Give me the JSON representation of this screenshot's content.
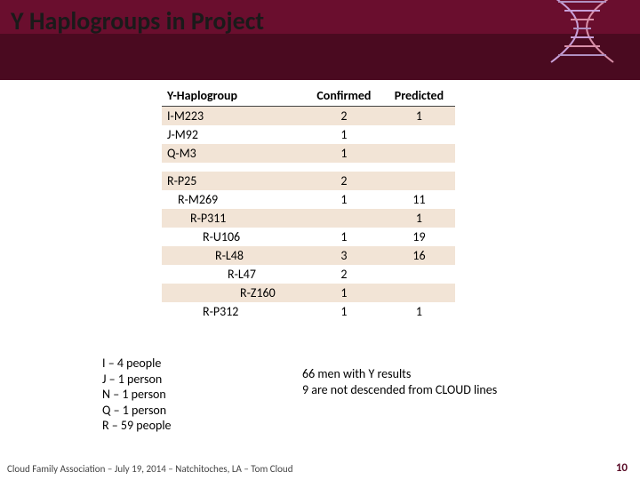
{
  "title": "Y Haplogroups in Project",
  "colors": {
    "header_band": "#6a0e2e",
    "header_inner": "#4a0a20",
    "row_band": "#f2e4d6",
    "page_num": "#5a0d28"
  },
  "table": {
    "headers": {
      "c0": "Y-Haplogroup",
      "c1": "Confirmed",
      "c2": "Predicted"
    },
    "rows": [
      {
        "label": "I-M223",
        "indent": 0,
        "confirmed": "2",
        "predicted": "1",
        "band": true
      },
      {
        "label": "J-M92",
        "indent": 0,
        "confirmed": "1",
        "predicted": "",
        "band": false
      },
      {
        "label": "Q-M3",
        "indent": 0,
        "confirmed": "1",
        "predicted": "",
        "band": true
      },
      {
        "gap": true
      },
      {
        "label": "R-P25",
        "indent": 0,
        "confirmed": "2",
        "predicted": "",
        "band": true
      },
      {
        "label": "R-M269",
        "indent": 1,
        "confirmed": "1",
        "predicted": "11",
        "band": false
      },
      {
        "label": "R-P311",
        "indent": 2,
        "confirmed": "",
        "predicted": "1",
        "band": true
      },
      {
        "label": "R-U106",
        "indent": 3,
        "confirmed": "1",
        "predicted": "19",
        "band": false
      },
      {
        "label": "R-L48",
        "indent": 4,
        "confirmed": "3",
        "predicted": "16",
        "band": true
      },
      {
        "label": "R-L47",
        "indent": 5,
        "confirmed": "2",
        "predicted": "",
        "band": false
      },
      {
        "label": "R-Z160",
        "indent": 6,
        "confirmed": "1",
        "predicted": "",
        "band": true
      },
      {
        "label": "R-P312",
        "indent": 3,
        "confirmed": "1",
        "predicted": "1",
        "band": false
      }
    ]
  },
  "summary_left": {
    "l0": "I – 4 people",
    "l1": "J – 1 person",
    "l2": "N – 1 person",
    "l3": "Q – 1 person",
    "l4": "R – 59 people"
  },
  "summary_right": {
    "l0": "66 men with Y results",
    "l1": "9 are not descended from CLOUD lines"
  },
  "footer": "Cloud Family Association – July 19, 2014 – Natchitoches, LA – Tom Cloud",
  "page_num": "10"
}
